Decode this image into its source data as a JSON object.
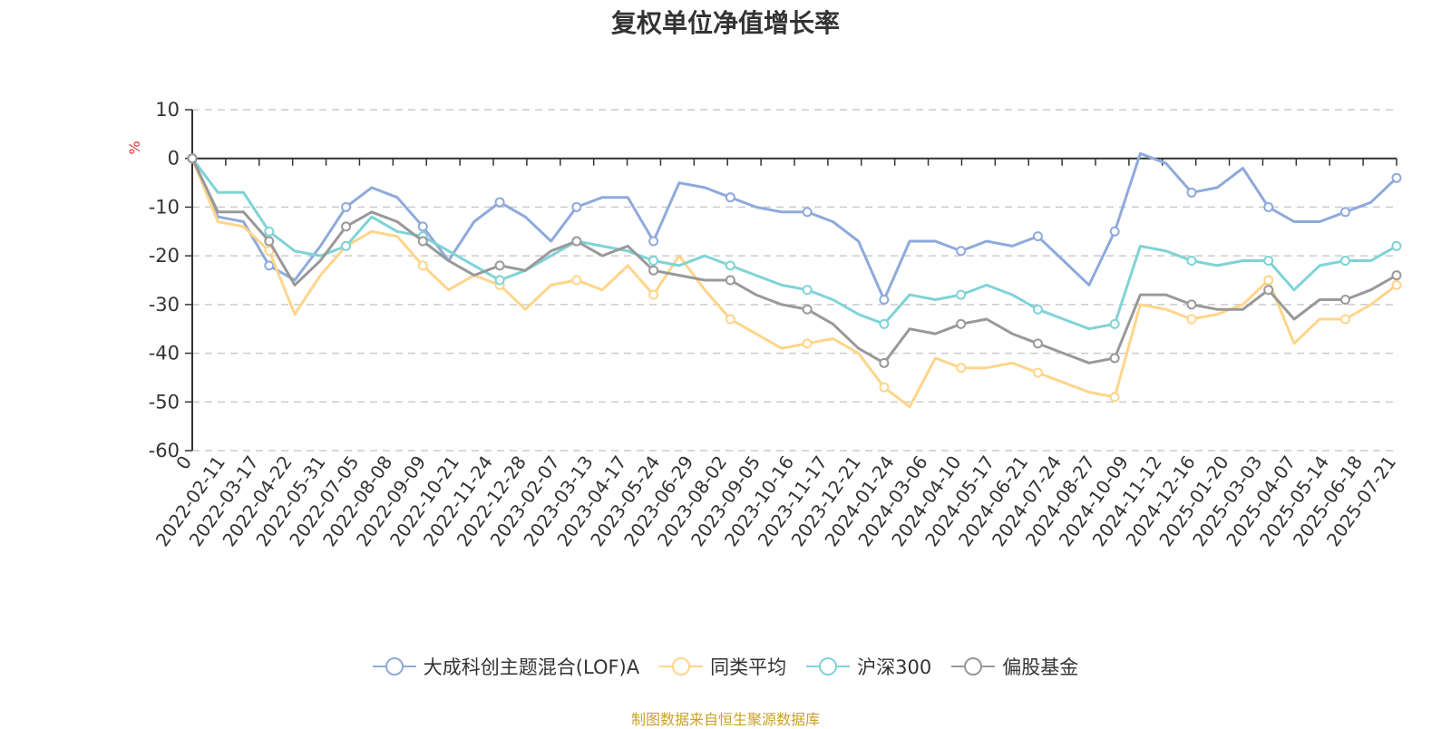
{
  "chart_data": {
    "type": "line",
    "title": "复权单位净值增长率",
    "ylabel": "%",
    "ylim": [
      -60,
      10
    ],
    "yticks": [
      10,
      0,
      -10,
      -20,
      -30,
      -40,
      -50,
      -60
    ],
    "grid": true,
    "legend_position": "bottom",
    "x_tick_labels": [
      "0",
      "2022-02-11",
      "2022-03-17",
      "2022-04-22",
      "2022-05-31",
      "2022-07-05",
      "2022-08-08",
      "2022-09-09",
      "2022-10-21",
      "2022-11-24",
      "2022-12-28",
      "2023-02-07",
      "2023-03-13",
      "2023-04-17",
      "2023-05-24",
      "2023-06-29",
      "2023-08-02",
      "2023-09-05",
      "2023-10-16",
      "2023-11-17",
      "2023-12-21",
      "2024-01-24",
      "2024-03-06",
      "2024-04-10",
      "2024-05-17",
      "2024-06-21",
      "2024-07-24",
      "2024-08-27",
      "2024-10-09",
      "2024-11-12",
      "2024-12-16",
      "2025-01-20",
      "2025-03-03",
      "2025-04-07",
      "2025-05-14",
      "2025-06-18",
      "2025-07-21"
    ],
    "series": [
      {
        "name": "大成科创主题混合(LOF)A",
        "color": "#8eaadb",
        "values": [
          0,
          -12,
          -13,
          -22,
          -25,
          -18,
          -10,
          -6,
          -8,
          -14,
          -21,
          -13,
          -9,
          -12,
          -17,
          -10,
          -8,
          -8,
          -17,
          -5,
          -6,
          -8,
          -10,
          -11,
          -11,
          -13,
          -17,
          -29,
          -17,
          -17,
          -19,
          -17,
          -18,
          -16,
          -21,
          -26,
          -15,
          1,
          -1,
          -7,
          -6,
          -2,
          -10,
          -13,
          -13,
          -11,
          -9,
          -4
        ]
      },
      {
        "name": "同类平均",
        "color": "#ffd58a",
        "values": [
          0,
          -13,
          -14,
          -19,
          -32,
          -24,
          -18,
          -15,
          -16,
          -22,
          -27,
          -24,
          -26,
          -31,
          -26,
          -25,
          -27,
          -22,
          -28,
          -20,
          -27,
          -33,
          -36,
          -39,
          -38,
          -37,
          -40,
          -47,
          -51,
          -41,
          -43,
          -43,
          -42,
          -44,
          -46,
          -48,
          -49,
          -30,
          -31,
          -33,
          -32,
          -30,
          -25,
          -38,
          -33,
          -33,
          -30,
          -26
        ]
      },
      {
        "name": "沪深300",
        "color": "#7fd3d7",
        "values": [
          0,
          -7,
          -7,
          -15,
          -19,
          -20,
          -18,
          -12,
          -15,
          -16,
          -19,
          -22,
          -25,
          -23,
          -20,
          -17,
          -18,
          -19,
          -21,
          -22,
          -20,
          -22,
          -24,
          -26,
          -27,
          -29,
          -32,
          -34,
          -28,
          -29,
          -28,
          -26,
          -28,
          -31,
          -33,
          -35,
          -34,
          -18,
          -19,
          -21,
          -22,
          -21,
          -21,
          -27,
          -22,
          -21,
          -21,
          -18
        ]
      },
      {
        "name": "偏股基金",
        "color": "#999999",
        "values": [
          0,
          -11,
          -11,
          -17,
          -26,
          -21,
          -14,
          -11,
          -13,
          -17,
          -21,
          -24,
          -22,
          -23,
          -19,
          -17,
          -20,
          -18,
          -23,
          -24,
          -25,
          -25,
          -28,
          -30,
          -31,
          -34,
          -39,
          -42,
          -35,
          -36,
          -34,
          -33,
          -36,
          -38,
          -40,
          -42,
          -41,
          -28,
          -28,
          -30,
          -31,
          -31,
          -27,
          -33,
          -29,
          -29,
          -27,
          -24
        ]
      }
    ]
  },
  "source_text": "制图数据来自恒生聚源数据库"
}
